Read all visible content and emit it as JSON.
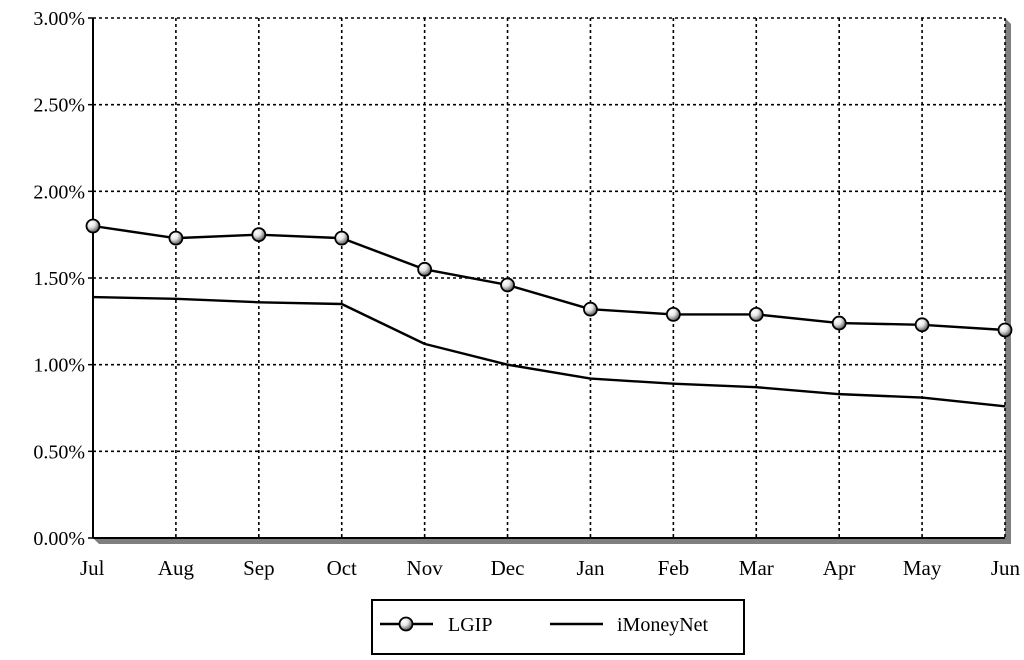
{
  "chart_data": {
    "type": "line",
    "categories": [
      "Jul",
      "Aug",
      "Sep",
      "Oct",
      "Nov",
      "Dec",
      "Jan",
      "Feb",
      "Mar",
      "Apr",
      "May",
      "Jun"
    ],
    "y_ticks": [
      "0.00%",
      "0.50%",
      "1.00%",
      "1.50%",
      "2.00%",
      "2.50%",
      "3.00%"
    ],
    "ylim": [
      0,
      3
    ],
    "grid": true,
    "legend_position": "bottom-center",
    "series": [
      {
        "name": "LGIP",
        "marker": "circle",
        "color": "#000000",
        "values": [
          1.8,
          1.73,
          1.75,
          1.73,
          1.55,
          1.46,
          1.32,
          1.29,
          1.29,
          1.24,
          1.23,
          1.2
        ]
      },
      {
        "name": "iMoneyNet",
        "marker": "none",
        "color": "#000000",
        "values": [
          1.39,
          1.38,
          1.36,
          1.35,
          1.12,
          1.0,
          0.92,
          0.89,
          0.87,
          0.83,
          0.81,
          0.76
        ]
      }
    ]
  }
}
